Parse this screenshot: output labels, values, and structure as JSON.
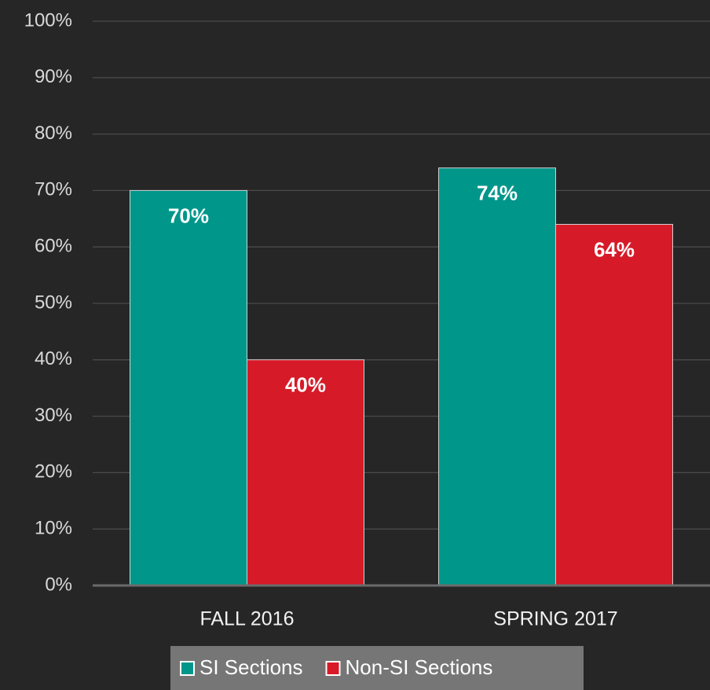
{
  "chart_data": {
    "type": "bar",
    "categories": [
      "FALL 2016",
      "SPRING 2017"
    ],
    "series": [
      {
        "name": "SI Sections",
        "color": "#00968a",
        "values": [
          70,
          74
        ],
        "value_labels": [
          "70%",
          "74%"
        ]
      },
      {
        "name": "Non-SI Sections",
        "color": "#d71a28",
        "values": [
          40,
          64
        ],
        "value_labels": [
          "40%",
          "64%"
        ]
      }
    ],
    "ylim": [
      0,
      100
    ],
    "yticks": [
      {
        "value": 0,
        "label": "0%"
      },
      {
        "value": 10,
        "label": "10%"
      },
      {
        "value": 20,
        "label": "20%"
      },
      {
        "value": 30,
        "label": "30%"
      },
      {
        "value": 40,
        "label": "40%"
      },
      {
        "value": 50,
        "label": "50%"
      },
      {
        "value": 60,
        "label": "60%"
      },
      {
        "value": 70,
        "label": "70%"
      },
      {
        "value": 80,
        "label": "80%"
      },
      {
        "value": 90,
        "label": "90%"
      },
      {
        "value": 100,
        "label": "100%"
      }
    ],
    "grid": true,
    "legend": "bottom"
  }
}
